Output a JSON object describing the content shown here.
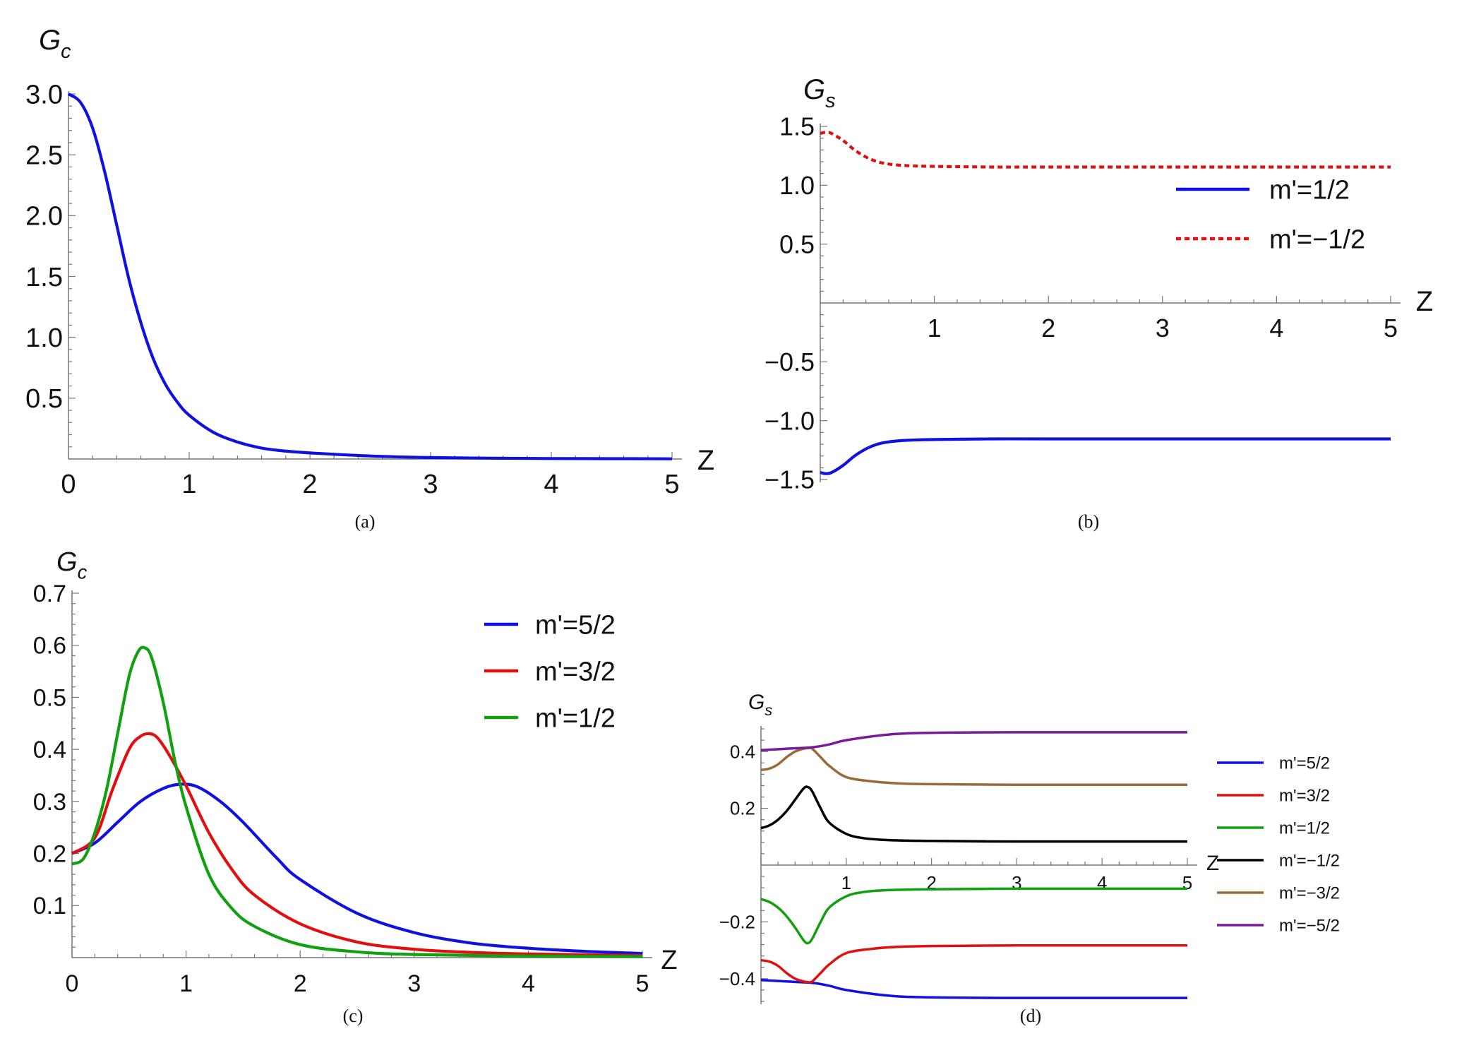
{
  "chart_data": [
    {
      "id": "a",
      "type": "line",
      "caption": "(a)",
      "ylabel": "G",
      "ylabel_sub": "c",
      "xlabel": "Z",
      "xlim": [
        0,
        5
      ],
      "ylim": [
        0,
        3.0
      ],
      "xticks": [
        0,
        1,
        2,
        3,
        4,
        5
      ],
      "xtick_labels": [
        "0",
        "1",
        "2",
        "3",
        "4",
        "5"
      ],
      "yticks": [
        0.5,
        1.0,
        1.5,
        2.0,
        2.5,
        3.0
      ],
      "ytick_labels": [
        "0.5",
        "1.0",
        "1.5",
        "2.0",
        "2.5",
        "3.0"
      ],
      "legend": null,
      "series": [
        {
          "name": "G_c",
          "color": "#1010e0",
          "dash": false,
          "x": [
            0,
            0.1,
            0.2,
            0.3,
            0.4,
            0.5,
            0.6,
            0.7,
            0.8,
            0.9,
            1.0,
            1.2,
            1.4,
            1.6,
            1.8,
            2.0,
            2.5,
            3.0,
            3.5,
            4.0,
            4.5,
            5.0
          ],
          "y": [
            3.0,
            2.93,
            2.72,
            2.36,
            1.92,
            1.48,
            1.12,
            0.83,
            0.62,
            0.47,
            0.36,
            0.22,
            0.14,
            0.09,
            0.065,
            0.05,
            0.025,
            0.012,
            0.007,
            0.004,
            0.003,
            0.002
          ]
        }
      ]
    },
    {
      "id": "b",
      "type": "line",
      "caption": "(b)",
      "ylabel": "G",
      "ylabel_sub": "s",
      "xlabel": "Z",
      "xlim": [
        0,
        5
      ],
      "ylim": [
        -1.5,
        1.5
      ],
      "xticks": [
        1,
        2,
        3,
        4,
        5
      ],
      "xtick_labels": [
        "1",
        "2",
        "3",
        "4",
        "5"
      ],
      "yticks": [
        -1.5,
        -1.0,
        -0.5,
        0.5,
        1.0,
        1.5
      ],
      "ytick_labels": [
        "−1.5",
        "−1.0",
        "−0.5",
        "0.5",
        "1.0",
        "1.5"
      ],
      "legend": "top-right",
      "series": [
        {
          "name": "m'=1/2",
          "color": "#1010e0",
          "dash": false,
          "x": [
            0,
            0.05,
            0.1,
            0.2,
            0.3,
            0.4,
            0.5,
            0.6,
            0.7,
            0.8,
            1.0,
            1.5,
            2.0,
            3.0,
            4.0,
            5.0
          ],
          "y": [
            -1.44,
            -1.45,
            -1.44,
            -1.38,
            -1.3,
            -1.24,
            -1.2,
            -1.18,
            -1.17,
            -1.165,
            -1.16,
            -1.155,
            -1.155,
            -1.155,
            -1.155,
            -1.155
          ]
        },
        {
          "name": "m'=−1/2",
          "color": "#e01010",
          "dash": true,
          "x": [
            0,
            0.05,
            0.1,
            0.2,
            0.3,
            0.4,
            0.5,
            0.6,
            0.7,
            0.8,
            1.0,
            1.5,
            2.0,
            3.0,
            4.0,
            5.0
          ],
          "y": [
            1.44,
            1.45,
            1.44,
            1.38,
            1.3,
            1.24,
            1.2,
            1.18,
            1.17,
            1.165,
            1.16,
            1.155,
            1.155,
            1.155,
            1.155,
            1.155
          ]
        }
      ]
    },
    {
      "id": "c",
      "type": "line",
      "caption": "(c)",
      "ylabel": "G",
      "ylabel_sub": "c",
      "xlabel": "Z",
      "xlim": [
        0,
        5
      ],
      "ylim": [
        0,
        0.7
      ],
      "xticks": [
        0,
        1,
        2,
        3,
        4,
        5
      ],
      "xtick_labels": [
        "0",
        "1",
        "2",
        "3",
        "4",
        "5"
      ],
      "yticks": [
        0.1,
        0.2,
        0.3,
        0.4,
        0.5,
        0.6,
        0.7
      ],
      "ytick_labels": [
        "0.1",
        "0.2",
        "0.3",
        "0.4",
        "0.5",
        "0.6",
        "0.7"
      ],
      "legend": "top-right",
      "series": [
        {
          "name": "m'=5/2",
          "color": "#1010e0",
          "dash": false,
          "x": [
            0,
            0.2,
            0.4,
            0.6,
            0.8,
            0.95,
            1.1,
            1.3,
            1.5,
            1.8,
            2.0,
            2.5,
            3.0,
            3.5,
            4.0,
            4.5,
            5.0
          ],
          "y": [
            0.2,
            0.22,
            0.26,
            0.3,
            0.325,
            0.333,
            0.328,
            0.3,
            0.26,
            0.19,
            0.15,
            0.085,
            0.048,
            0.028,
            0.018,
            0.012,
            0.008
          ]
        },
        {
          "name": "m'=3/2",
          "color": "#e01010",
          "dash": false,
          "x": [
            0,
            0.2,
            0.35,
            0.5,
            0.6,
            0.68,
            0.75,
            0.85,
            1.0,
            1.2,
            1.4,
            1.6,
            2.0,
            2.5,
            3.0,
            3.5,
            4.0,
            5.0
          ],
          "y": [
            0.2,
            0.23,
            0.32,
            0.4,
            0.425,
            0.43,
            0.422,
            0.39,
            0.33,
            0.24,
            0.17,
            0.12,
            0.065,
            0.03,
            0.016,
            0.01,
            0.007,
            0.004
          ]
        },
        {
          "name": "m'=1/2",
          "color": "#10a010",
          "dash": false,
          "x": [
            0,
            0.1,
            0.2,
            0.3,
            0.4,
            0.5,
            0.58,
            0.64,
            0.7,
            0.8,
            0.9,
            1.0,
            1.2,
            1.4,
            1.6,
            2.0,
            2.5,
            3.0,
            4.0,
            5.0
          ],
          "y": [
            0.18,
            0.19,
            0.24,
            0.32,
            0.43,
            0.54,
            0.588,
            0.595,
            0.575,
            0.49,
            0.38,
            0.29,
            0.16,
            0.095,
            0.06,
            0.025,
            0.011,
            0.006,
            0.003,
            0.002
          ]
        }
      ]
    },
    {
      "id": "d",
      "type": "line",
      "caption": "(d)",
      "ylabel": "G",
      "ylabel_sub": "s",
      "xlabel": "Z",
      "xlim": [
        0,
        5
      ],
      "ylim": [
        -0.48,
        0.48
      ],
      "xticks": [
        1,
        2,
        3,
        4,
        5
      ],
      "xtick_labels": [
        "1",
        "2",
        "3",
        "4",
        "5"
      ],
      "yticks": [
        -0.4,
        -0.2,
        0.2,
        0.4
      ],
      "ytick_labels": [
        "−0.4",
        "−0.2",
        "0.2",
        "0.4"
      ],
      "legend": "right",
      "series": [
        {
          "name": "m'=5/2",
          "color": "#1010e0",
          "dash": false,
          "x": [
            0,
            0.3,
            0.6,
            0.8,
            1.0,
            1.5,
            2.0,
            3.0,
            4.0,
            5.0
          ],
          "y": [
            -0.405,
            -0.41,
            -0.415,
            -0.425,
            -0.44,
            -0.46,
            -0.466,
            -0.468,
            -0.468,
            -0.468
          ]
        },
        {
          "name": "m'=3/2",
          "color": "#e01010",
          "dash": false,
          "x": [
            0,
            0.1,
            0.2,
            0.3,
            0.4,
            0.5,
            0.55,
            0.6,
            0.7,
            0.8,
            1.0,
            1.3,
            1.6,
            2.0,
            3.0,
            4.0,
            5.0
          ],
          "y": [
            -0.335,
            -0.34,
            -0.355,
            -0.38,
            -0.4,
            -0.41,
            -0.412,
            -0.41,
            -0.38,
            -0.35,
            -0.31,
            -0.295,
            -0.288,
            -0.285,
            -0.283,
            -0.283,
            -0.283
          ]
        },
        {
          "name": "m'=1/2",
          "color": "#10a010",
          "dash": false,
          "x": [
            0,
            0.1,
            0.2,
            0.3,
            0.4,
            0.5,
            0.55,
            0.6,
            0.7,
            0.8,
            1.0,
            1.2,
            1.5,
            2.0,
            3.0,
            4.0,
            5.0
          ],
          "y": [
            -0.12,
            -0.13,
            -0.15,
            -0.18,
            -0.22,
            -0.265,
            -0.275,
            -0.26,
            -0.2,
            -0.15,
            -0.11,
            -0.095,
            -0.088,
            -0.085,
            -0.083,
            -0.083,
            -0.083
          ]
        },
        {
          "name": "m'=−1/2",
          "color": "#000000",
          "dash": false,
          "x": [
            0,
            0.1,
            0.2,
            0.3,
            0.4,
            0.5,
            0.55,
            0.6,
            0.7,
            0.8,
            1.0,
            1.2,
            1.5,
            2.0,
            3.0,
            4.0,
            5.0
          ],
          "y": [
            0.13,
            0.14,
            0.16,
            0.19,
            0.23,
            0.27,
            0.275,
            0.26,
            0.2,
            0.15,
            0.11,
            0.095,
            0.088,
            0.085,
            0.083,
            0.083,
            0.083
          ]
        },
        {
          "name": "m'=−3/2",
          "color": "#9a6a3a",
          "dash": false,
          "x": [
            0,
            0.1,
            0.2,
            0.3,
            0.4,
            0.5,
            0.55,
            0.6,
            0.7,
            0.8,
            1.0,
            1.3,
            1.6,
            2.0,
            3.0,
            4.0,
            5.0
          ],
          "y": [
            0.335,
            0.34,
            0.355,
            0.38,
            0.4,
            0.41,
            0.412,
            0.41,
            0.38,
            0.35,
            0.31,
            0.295,
            0.288,
            0.285,
            0.283,
            0.283,
            0.283
          ]
        },
        {
          "name": "m'=−5/2",
          "color": "#7a1a9a",
          "dash": false,
          "x": [
            0,
            0.3,
            0.6,
            0.8,
            1.0,
            1.5,
            2.0,
            3.0,
            4.0,
            5.0
          ],
          "y": [
            0.405,
            0.41,
            0.415,
            0.425,
            0.44,
            0.46,
            0.466,
            0.468,
            0.468,
            0.468
          ]
        }
      ]
    }
  ]
}
